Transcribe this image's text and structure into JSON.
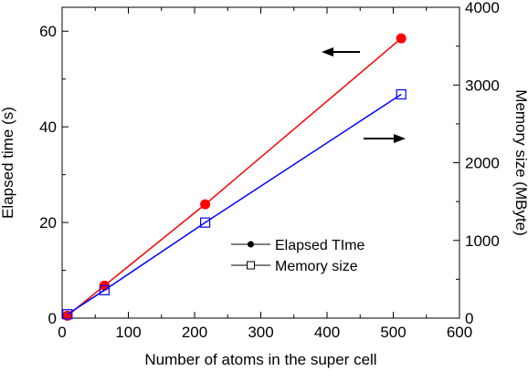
{
  "chart_data": {
    "type": "line",
    "title": "",
    "xlabel": "Number of atoms in the super cell",
    "ylabel": "Elapsed time (s)",
    "y2label": "Memory size (MByte)",
    "xlim": [
      0,
      600
    ],
    "ylim": [
      0,
      65
    ],
    "y2lim": [
      0,
      4000
    ],
    "xticks": [
      "0",
      "100",
      "200",
      "300",
      "400",
      "500",
      "600"
    ],
    "yticks": [
      "0",
      "20",
      "40",
      "60"
    ],
    "y2ticks": [
      "0",
      "1000",
      "2000",
      "3000",
      "4000"
    ],
    "series": [
      {
        "name": "Elapsed TIme",
        "axis": "left",
        "color": "#ff0000",
        "marker": "filled-circle",
        "x": [
          8,
          64,
          216,
          512
        ],
        "y": [
          0.5,
          6.8,
          23.8,
          58.5
        ]
      },
      {
        "name": "Memory size",
        "axis": "right",
        "color": "#0000ff",
        "marker": "open-square",
        "x": [
          8,
          64,
          216,
          512
        ],
        "y": [
          50,
          360,
          1230,
          2880
        ]
      }
    ],
    "legend": {
      "placement": "center-right"
    },
    "annotations": [
      {
        "type": "arrow",
        "direction": "left",
        "refers_to": "Elapsed TIme"
      },
      {
        "type": "arrow",
        "direction": "right",
        "refers_to": "Memory size"
      }
    ],
    "grid": false
  }
}
